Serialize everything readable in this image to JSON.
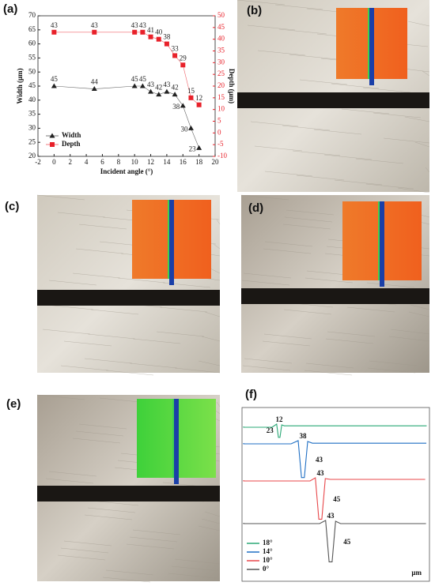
{
  "panel_labels": [
    "(a)",
    "(b)",
    "(c)",
    "(d)",
    "(e)",
    "(f)"
  ],
  "chart_data": [
    {
      "type": "line",
      "xlabel": "Incident angle (°)",
      "ylabel": "Width (μm)",
      "y2label": "Depth (μm)",
      "x": [
        0,
        5,
        10,
        11,
        12,
        13,
        14,
        15,
        16,
        17,
        18
      ],
      "series": [
        {
          "name": "Width",
          "color": "#222222",
          "marker": "triangle",
          "values": [
            45,
            44,
            45,
            45,
            43,
            42,
            43,
            42,
            38,
            30,
            23
          ]
        },
        {
          "name": "Depth",
          "color": "#e8212a",
          "marker": "square",
          "axis": "y2",
          "values": [
            43,
            43,
            43,
            43,
            41,
            40,
            38,
            33,
            29,
            15,
            12
          ]
        }
      ],
      "xlim": [
        -2,
        20
      ],
      "xticks": [
        -2,
        0,
        2,
        4,
        6,
        8,
        10,
        12,
        14,
        16,
        18,
        20
      ],
      "ylim": [
        20,
        70
      ],
      "yticks": [
        20,
        25,
        30,
        35,
        40,
        45,
        50,
        55,
        60,
        65,
        70
      ],
      "y2lim": [
        -10,
        50
      ],
      "y2ticks": [
        -10,
        -5,
        0,
        5,
        10,
        15,
        20,
        25,
        30,
        35,
        40,
        45,
        50
      ],
      "legend": "lower left"
    },
    {
      "type": "profile",
      "unit": "µm",
      "series": [
        {
          "name": "18°",
          "color": "#2aa876",
          "depth": 12,
          "width": 23
        },
        {
          "name": "14°",
          "color": "#1f6fc4",
          "depth": 38,
          "width": 43
        },
        {
          "name": "10°",
          "color": "#e8474a",
          "depth": 43,
          "width": 45
        },
        {
          "name": "0°",
          "color": "#555555",
          "depth": 43,
          "width": 45
        }
      ],
      "legend": "lower left"
    }
  ]
}
